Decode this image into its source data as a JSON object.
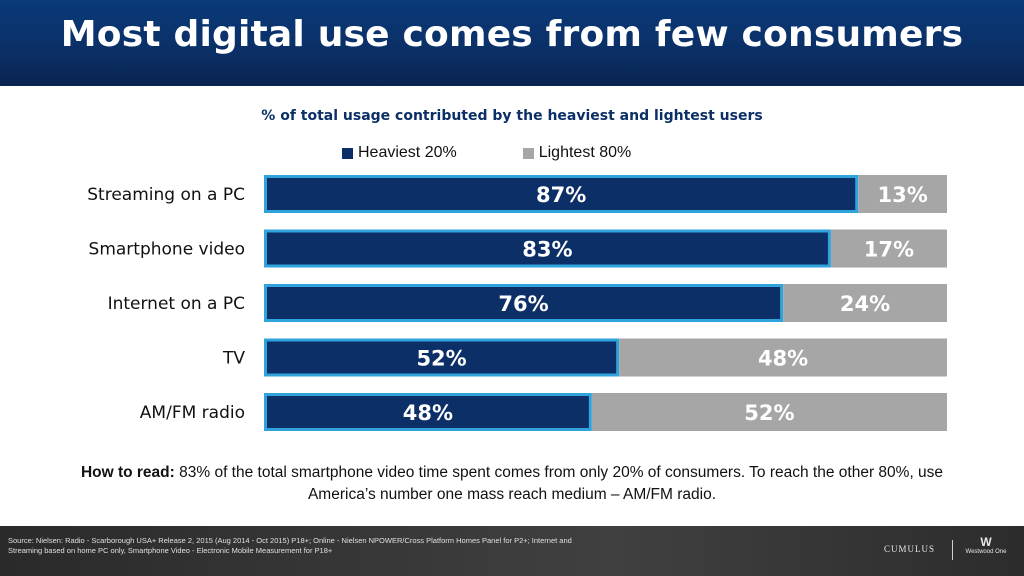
{
  "title": "Most digital use comes from few consumers",
  "subtitle": "% of total usage contributed by the heaviest and lightest users",
  "colors": {
    "heavy": "#0b2f66",
    "light": "#a6a6a6",
    "heavy_outline": "#2fa3dc",
    "header": "#0b2f66"
  },
  "chart_data": {
    "type": "bar",
    "orientation": "horizontal",
    "stacked": true,
    "categories": [
      "Streaming on a PC",
      "Smartphone video",
      "Internet on a PC",
      "TV",
      "AM/FM radio"
    ],
    "series": [
      {
        "name": "Heaviest 20%",
        "values": [
          87,
          83,
          76,
          52,
          48
        ],
        "labels": [
          "87%",
          "83%",
          "76%",
          "52%",
          "48%"
        ]
      },
      {
        "name": "Lightest 80%",
        "values": [
          13,
          17,
          24,
          48,
          52
        ],
        "labels": [
          "13%",
          "17%",
          "24%",
          "48%",
          "52%"
        ]
      }
    ],
    "xlim": [
      0,
      100
    ],
    "legend_position": "top"
  },
  "howto": {
    "label": "How to read:",
    "text": "83% of the total smartphone video time spent comes from only 20% of consumers. To reach the other 80%, use America’s number one mass reach medium – AM/FM radio."
  },
  "footer": {
    "source": "Source: Nielsen: Radio - Scarborough USA+ Release 2, 2015 (Aug 2014 - Oct 2015) P18+; Online - Nielsen NPOWER/Cross Platform Homes Panel for P2+; Internet and Streaming based on home PC only, Smartphone Video - Electronic Mobile Measurement for P18+",
    "logo_left": "CUMULUS",
    "logo_right": "Westwood One"
  }
}
